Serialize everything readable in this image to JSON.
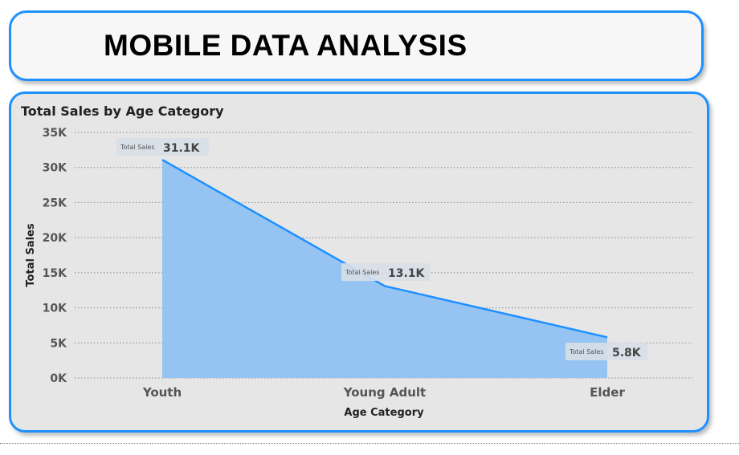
{
  "header": {
    "title": "MOBILE DATA ANALYSIS"
  },
  "colors": {
    "accent": "#1e90ff",
    "area_fill": "#90c2f2",
    "line": "#1e90ff",
    "card_bg": "#e6e6e6",
    "gridline": "#8a8a8a"
  },
  "chart_data": {
    "type": "area",
    "title": "Total Sales by Age Category",
    "xlabel": "Age Category",
    "ylabel": "Total Sales",
    "categories": [
      "Youth",
      "Young Adult",
      "Elder"
    ],
    "series": [
      {
        "name": "Total Sales",
        "values": [
          31100,
          13100,
          5800
        ]
      }
    ],
    "data_labels": [
      "31.1K",
      "13.1K",
      "5.8K"
    ],
    "ylim": [
      0,
      35000
    ],
    "yticks": [
      0,
      5000,
      10000,
      15000,
      20000,
      25000,
      30000,
      35000
    ],
    "ytick_labels": [
      "0K",
      "5K",
      "10K",
      "15K",
      "20K",
      "25K",
      "30K",
      "35K"
    ],
    "grid": true,
    "legend": "none"
  }
}
